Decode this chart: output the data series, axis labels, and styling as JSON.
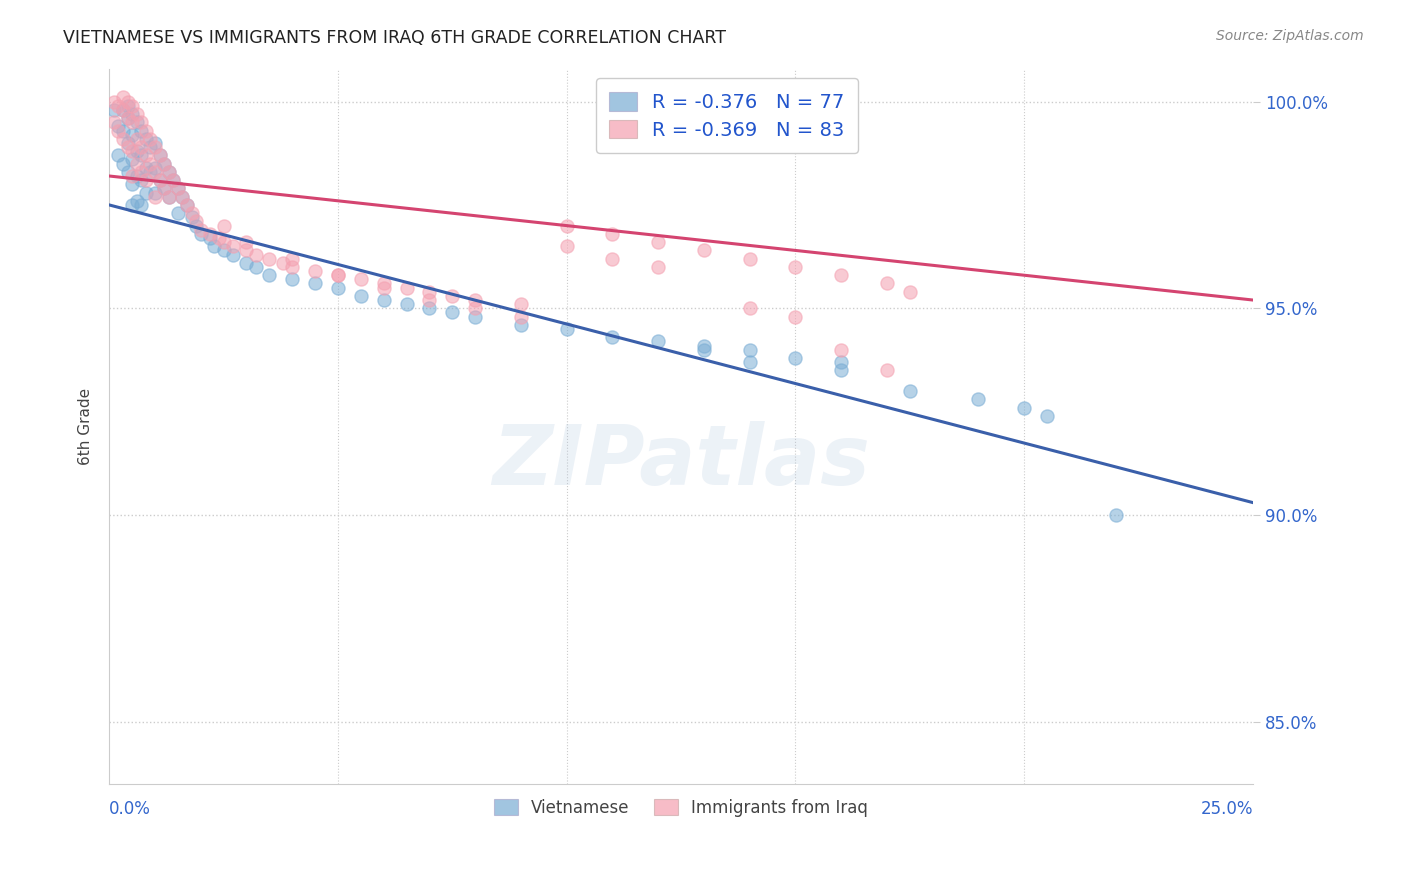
{
  "title": "VIETNAMESE VS IMMIGRANTS FROM IRAQ 6TH GRADE CORRELATION CHART",
  "source": "Source: ZipAtlas.com",
  "ylabel": "6th Grade",
  "x_min": 0.0,
  "x_max": 0.25,
  "y_min": 0.835,
  "y_max": 1.008,
  "y_ticks": [
    0.85,
    0.9,
    0.95,
    1.0
  ],
  "y_tick_labels": [
    "85.0%",
    "90.0%",
    "95.0%",
    "100.0%"
  ],
  "x_ticks": [
    0.0,
    0.05,
    0.1,
    0.15,
    0.2,
    0.25
  ],
  "gridline_color": "#cccccc",
  "background_color": "#ffffff",
  "blue_color": "#7aadd4",
  "pink_color": "#f4a0b0",
  "blue_line_color": "#3a5faa",
  "pink_line_color": "#d44470",
  "legend_R_blue": "-0.376",
  "legend_N_blue": "77",
  "legend_R_pink": "-0.369",
  "legend_N_pink": "83",
  "legend_label_blue": "Vietnamese",
  "legend_label_pink": "Immigrants from Iraq",
  "watermark": "ZIPatlas",
  "blue_line_x0": 0.0,
  "blue_line_y0": 0.975,
  "blue_line_x1": 0.25,
  "blue_line_y1": 0.903,
  "pink_line_x0": 0.0,
  "pink_line_y0": 0.982,
  "pink_line_x1": 0.25,
  "pink_line_y1": 0.952,
  "blue_x": [
    0.001,
    0.002,
    0.002,
    0.003,
    0.003,
    0.003,
    0.004,
    0.004,
    0.004,
    0.004,
    0.005,
    0.005,
    0.005,
    0.005,
    0.005,
    0.006,
    0.006,
    0.006,
    0.006,
    0.007,
    0.007,
    0.007,
    0.007,
    0.008,
    0.008,
    0.008,
    0.009,
    0.009,
    0.01,
    0.01,
    0.01,
    0.011,
    0.011,
    0.012,
    0.012,
    0.013,
    0.013,
    0.014,
    0.015,
    0.015,
    0.016,
    0.017,
    0.018,
    0.019,
    0.02,
    0.022,
    0.023,
    0.025,
    0.027,
    0.03,
    0.032,
    0.035,
    0.04,
    0.045,
    0.05,
    0.055,
    0.06,
    0.065,
    0.07,
    0.075,
    0.08,
    0.09,
    0.1,
    0.11,
    0.12,
    0.13,
    0.14,
    0.15,
    0.16,
    0.175,
    0.19,
    0.2,
    0.205,
    0.13,
    0.14,
    0.16,
    0.22
  ],
  "blue_y": [
    0.998,
    0.994,
    0.987,
    0.998,
    0.993,
    0.985,
    0.999,
    0.996,
    0.99,
    0.983,
    0.997,
    0.992,
    0.986,
    0.98,
    0.975,
    0.995,
    0.988,
    0.982,
    0.976,
    0.993,
    0.987,
    0.981,
    0.975,
    0.991,
    0.984,
    0.978,
    0.989,
    0.983,
    0.99,
    0.984,
    0.978,
    0.987,
    0.981,
    0.985,
    0.979,
    0.983,
    0.977,
    0.981,
    0.979,
    0.973,
    0.977,
    0.975,
    0.972,
    0.97,
    0.968,
    0.967,
    0.965,
    0.964,
    0.963,
    0.961,
    0.96,
    0.958,
    0.957,
    0.956,
    0.955,
    0.953,
    0.952,
    0.951,
    0.95,
    0.949,
    0.948,
    0.946,
    0.945,
    0.943,
    0.942,
    0.941,
    0.94,
    0.938,
    0.937,
    0.93,
    0.928,
    0.926,
    0.924,
    0.94,
    0.937,
    0.935,
    0.9
  ],
  "pink_x": [
    0.001,
    0.001,
    0.002,
    0.002,
    0.003,
    0.003,
    0.003,
    0.004,
    0.004,
    0.004,
    0.005,
    0.005,
    0.005,
    0.005,
    0.006,
    0.006,
    0.006,
    0.007,
    0.007,
    0.007,
    0.008,
    0.008,
    0.008,
    0.009,
    0.009,
    0.01,
    0.01,
    0.01,
    0.011,
    0.011,
    0.012,
    0.012,
    0.013,
    0.013,
    0.014,
    0.015,
    0.016,
    0.017,
    0.018,
    0.019,
    0.02,
    0.022,
    0.024,
    0.025,
    0.027,
    0.03,
    0.032,
    0.035,
    0.038,
    0.04,
    0.045,
    0.05,
    0.055,
    0.06,
    0.065,
    0.07,
    0.075,
    0.08,
    0.09,
    0.1,
    0.11,
    0.12,
    0.13,
    0.14,
    0.15,
    0.16,
    0.17,
    0.175,
    0.025,
    0.03,
    0.04,
    0.05,
    0.06,
    0.07,
    0.08,
    0.09,
    0.1,
    0.11,
    0.12,
    0.14,
    0.15,
    0.16,
    0.17
  ],
  "pink_y": [
    1.0,
    0.995,
    0.999,
    0.993,
    1.001,
    0.998,
    0.991,
    1.0,
    0.996,
    0.989,
    0.999,
    0.995,
    0.988,
    0.982,
    0.997,
    0.991,
    0.985,
    0.995,
    0.989,
    0.983,
    0.993,
    0.987,
    0.981,
    0.991,
    0.985,
    0.989,
    0.983,
    0.977,
    0.987,
    0.981,
    0.985,
    0.979,
    0.983,
    0.977,
    0.981,
    0.979,
    0.977,
    0.975,
    0.973,
    0.971,
    0.969,
    0.968,
    0.967,
    0.966,
    0.965,
    0.964,
    0.963,
    0.962,
    0.961,
    0.96,
    0.959,
    0.958,
    0.957,
    0.956,
    0.955,
    0.954,
    0.953,
    0.952,
    0.951,
    0.97,
    0.968,
    0.966,
    0.964,
    0.962,
    0.96,
    0.958,
    0.956,
    0.954,
    0.97,
    0.966,
    0.962,
    0.958,
    0.955,
    0.952,
    0.95,
    0.948,
    0.965,
    0.962,
    0.96,
    0.95,
    0.948,
    0.94,
    0.935
  ]
}
